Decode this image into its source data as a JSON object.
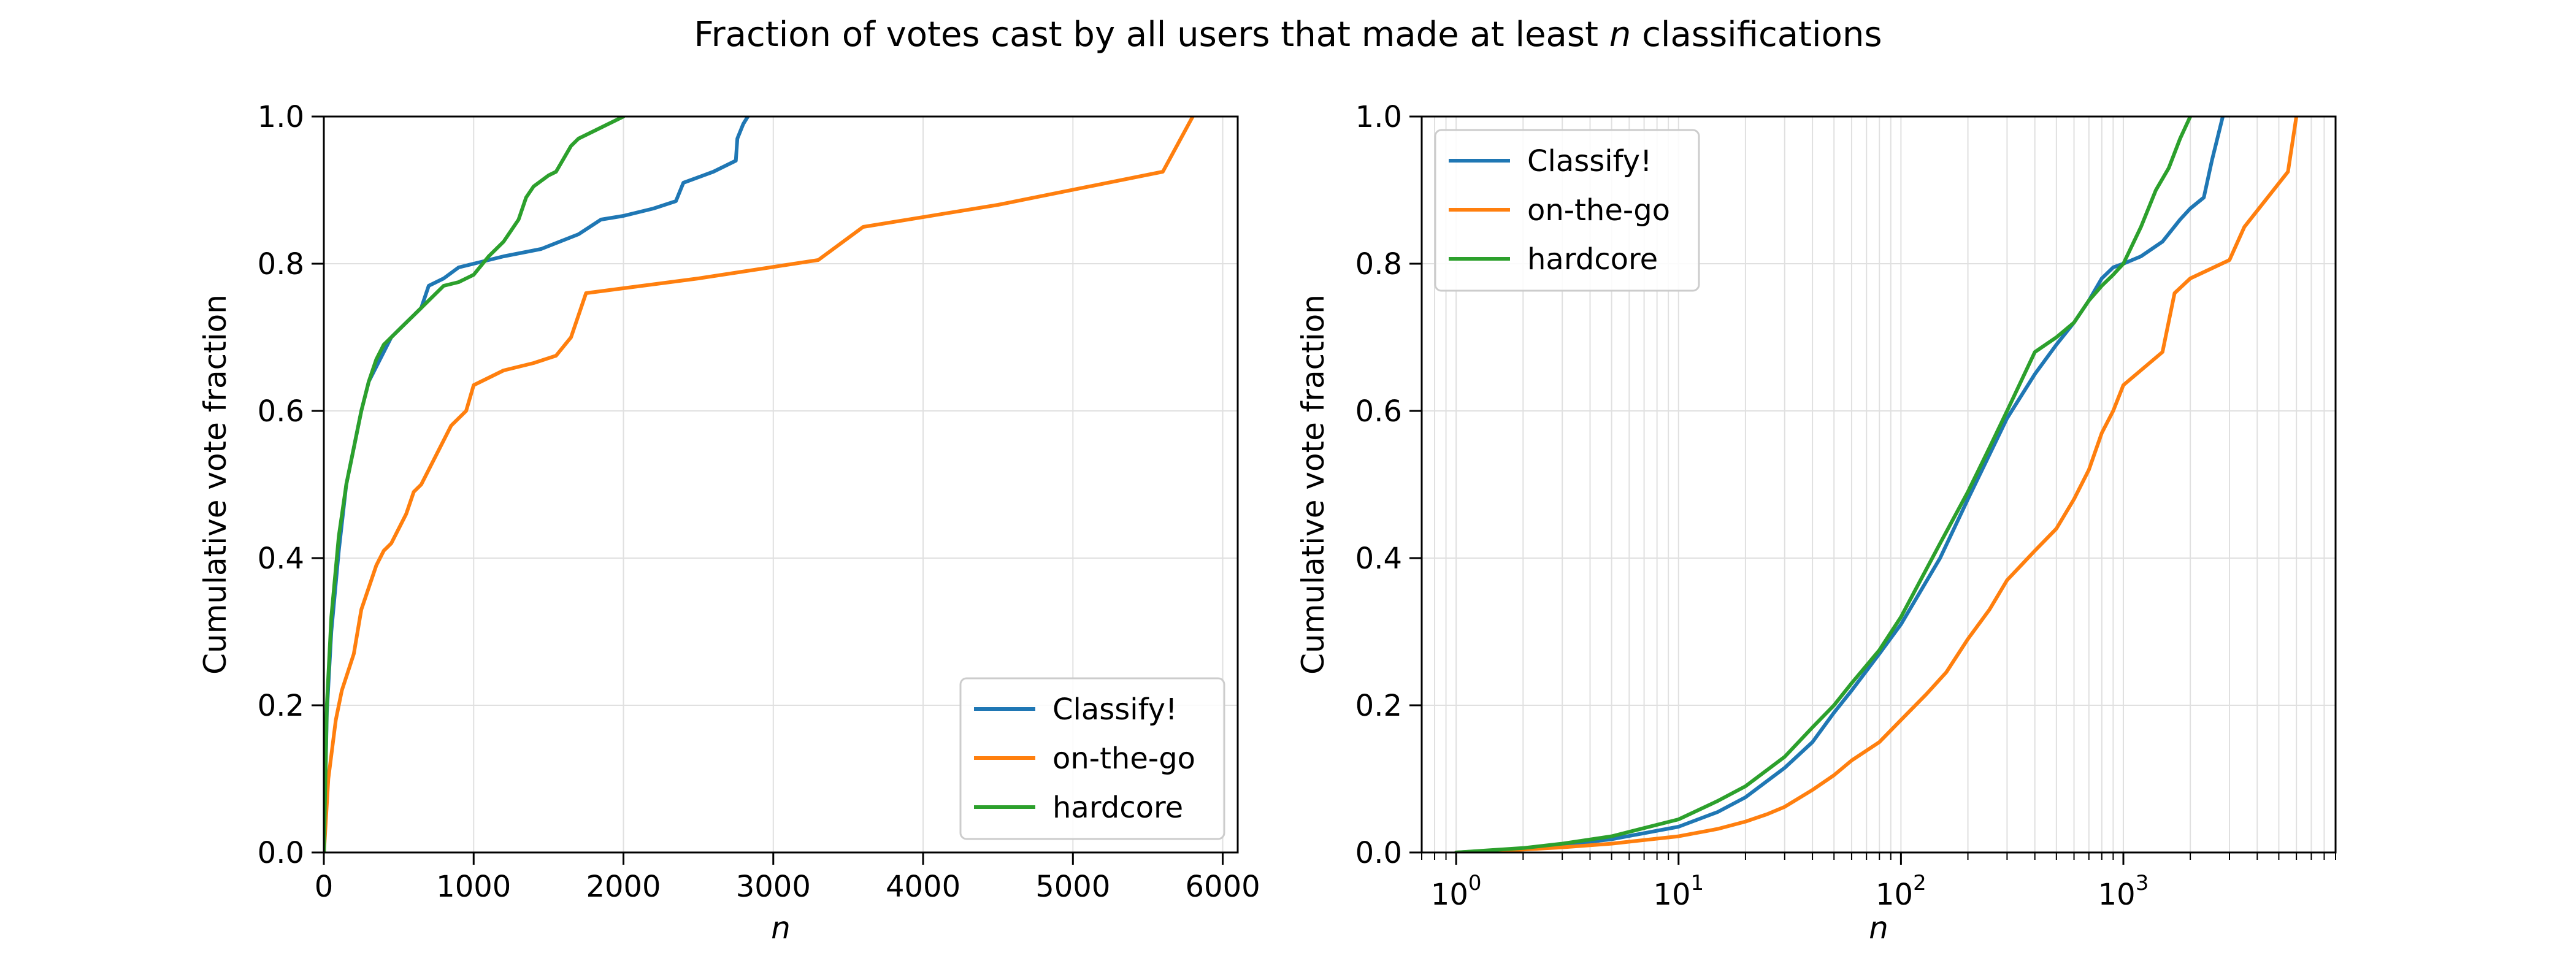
{
  "figure": {
    "title_prefix": "Fraction of votes cast by all users that made at least ",
    "title_var": "n",
    "title_suffix": " classifications"
  },
  "chart_data": [
    {
      "type": "line",
      "xscale": "linear",
      "xlabel": "n",
      "ylabel": "Cumulative vote fraction",
      "xlim": [
        0,
        6100
      ],
      "ylim": [
        0.0,
        1.0
      ],
      "xticks": [
        0,
        1000,
        2000,
        3000,
        4000,
        5000,
        6000
      ],
      "xtick_labels": [
        "0",
        "1000",
        "2000",
        "3000",
        "4000",
        "5000",
        "6000"
      ],
      "yticks": [
        0.0,
        0.2,
        0.4,
        0.6,
        0.8,
        1.0
      ],
      "ytick_labels": [
        "0.0",
        "0.2",
        "0.4",
        "0.6",
        "0.8",
        "1.0"
      ],
      "grid": true,
      "legend": "lower-right",
      "series": [
        {
          "name": "Classify!",
          "color": "#1f77b4",
          "x": [
            1,
            20,
            50,
            100,
            150,
            200,
            250,
            300,
            350,
            400,
            450,
            500,
            550,
            600,
            650,
            700,
            800,
            900,
            1000,
            1200,
            1450,
            1700,
            1850,
            2000,
            2200,
            2350,
            2400,
            2600,
            2750,
            2760,
            2800,
            2830
          ],
          "y": [
            0.0,
            0.19,
            0.3,
            0.41,
            0.5,
            0.55,
            0.6,
            0.64,
            0.66,
            0.68,
            0.7,
            0.71,
            0.72,
            0.73,
            0.74,
            0.77,
            0.78,
            0.795,
            0.8,
            0.81,
            0.82,
            0.84,
            0.86,
            0.865,
            0.875,
            0.885,
            0.91,
            0.925,
            0.94,
            0.97,
            0.99,
            1.0
          ]
        },
        {
          "name": "on-the-go",
          "color": "#ff7f0e",
          "x": [
            1,
            30,
            80,
            120,
            200,
            250,
            300,
            350,
            400,
            450,
            500,
            550,
            600,
            650,
            700,
            750,
            800,
            850,
            900,
            950,
            1000,
            1100,
            1200,
            1300,
            1400,
            1550,
            1650,
            1750,
            2500,
            3300,
            3600,
            4500,
            5600,
            5800
          ],
          "y": [
            0.0,
            0.1,
            0.18,
            0.22,
            0.27,
            0.33,
            0.36,
            0.39,
            0.41,
            0.42,
            0.44,
            0.46,
            0.49,
            0.5,
            0.52,
            0.54,
            0.56,
            0.58,
            0.59,
            0.6,
            0.635,
            0.645,
            0.655,
            0.66,
            0.665,
            0.675,
            0.7,
            0.76,
            0.78,
            0.805,
            0.85,
            0.88,
            0.925,
            1.0
          ]
        },
        {
          "name": "hardcore",
          "color": "#2ca02c",
          "x": [
            1,
            20,
            50,
            100,
            150,
            200,
            250,
            300,
            350,
            400,
            450,
            500,
            550,
            600,
            700,
            800,
            900,
            1000,
            1100,
            1200,
            1300,
            1350,
            1400,
            1500,
            1550,
            1650,
            1700,
            1800,
            1900,
            2000
          ],
          "y": [
            0.0,
            0.2,
            0.32,
            0.43,
            0.5,
            0.55,
            0.6,
            0.64,
            0.67,
            0.69,
            0.7,
            0.71,
            0.72,
            0.73,
            0.75,
            0.77,
            0.775,
            0.785,
            0.81,
            0.83,
            0.86,
            0.89,
            0.905,
            0.92,
            0.925,
            0.96,
            0.97,
            0.98,
            0.99,
            1.0
          ]
        }
      ]
    },
    {
      "type": "line",
      "xscale": "log",
      "xlabel": "n",
      "ylabel": "Cumulative vote fraction",
      "xlim": [
        0.7,
        9000
      ],
      "ylim": [
        0.0,
        1.0
      ],
      "xticks": [
        1,
        10,
        100,
        1000
      ],
      "xtick_base": "10",
      "xtick_exponents": [
        "0",
        "1",
        "2",
        "3"
      ],
      "yticks": [
        0.0,
        0.2,
        0.4,
        0.6,
        0.8,
        1.0
      ],
      "ytick_labels": [
        "0.0",
        "0.2",
        "0.4",
        "0.6",
        "0.8",
        "1.0"
      ],
      "grid": true,
      "legend": "upper-left",
      "series": [
        {
          "name": "Classify!",
          "color": "#1f77b4",
          "x": [
            1,
            2,
            3,
            5,
            10,
            15,
            20,
            30,
            40,
            50,
            60,
            80,
            100,
            150,
            200,
            300,
            400,
            500,
            600,
            700,
            800,
            900,
            1000,
            1200,
            1500,
            1800,
            2000,
            2300,
            2500,
            2800
          ],
          "y": [
            0.0,
            0.005,
            0.01,
            0.018,
            0.035,
            0.055,
            0.075,
            0.115,
            0.15,
            0.19,
            0.22,
            0.27,
            0.31,
            0.4,
            0.48,
            0.59,
            0.65,
            0.69,
            0.72,
            0.75,
            0.78,
            0.795,
            0.8,
            0.81,
            0.83,
            0.86,
            0.875,
            0.89,
            0.94,
            1.0
          ]
        },
        {
          "name": "on-the-go",
          "color": "#ff7f0e",
          "x": [
            1,
            2,
            3,
            5,
            10,
            15,
            20,
            25,
            30,
            40,
            50,
            60,
            80,
            100,
            130,
            160,
            200,
            250,
            300,
            400,
            500,
            600,
            700,
            800,
            900,
            1000,
            1500,
            1700,
            2000,
            3000,
            3500,
            5500,
            6000
          ],
          "y": [
            0.0,
            0.004,
            0.007,
            0.012,
            0.022,
            0.032,
            0.042,
            0.052,
            0.062,
            0.085,
            0.105,
            0.125,
            0.15,
            0.18,
            0.215,
            0.245,
            0.29,
            0.33,
            0.37,
            0.41,
            0.44,
            0.48,
            0.52,
            0.57,
            0.6,
            0.635,
            0.68,
            0.76,
            0.78,
            0.805,
            0.85,
            0.925,
            1.0
          ]
        },
        {
          "name": "hardcore",
          "color": "#2ca02c",
          "x": [
            1,
            2,
            3,
            5,
            10,
            15,
            20,
            30,
            40,
            50,
            60,
            80,
            100,
            150,
            200,
            250,
            300,
            400,
            500,
            600,
            700,
            800,
            900,
            1000,
            1200,
            1400,
            1600,
            1800,
            2000
          ],
          "y": [
            0.0,
            0.006,
            0.012,
            0.022,
            0.045,
            0.07,
            0.09,
            0.13,
            0.17,
            0.2,
            0.23,
            0.275,
            0.32,
            0.42,
            0.49,
            0.55,
            0.6,
            0.68,
            0.7,
            0.72,
            0.75,
            0.77,
            0.785,
            0.8,
            0.85,
            0.9,
            0.93,
            0.97,
            1.0
          ]
        }
      ]
    }
  ]
}
